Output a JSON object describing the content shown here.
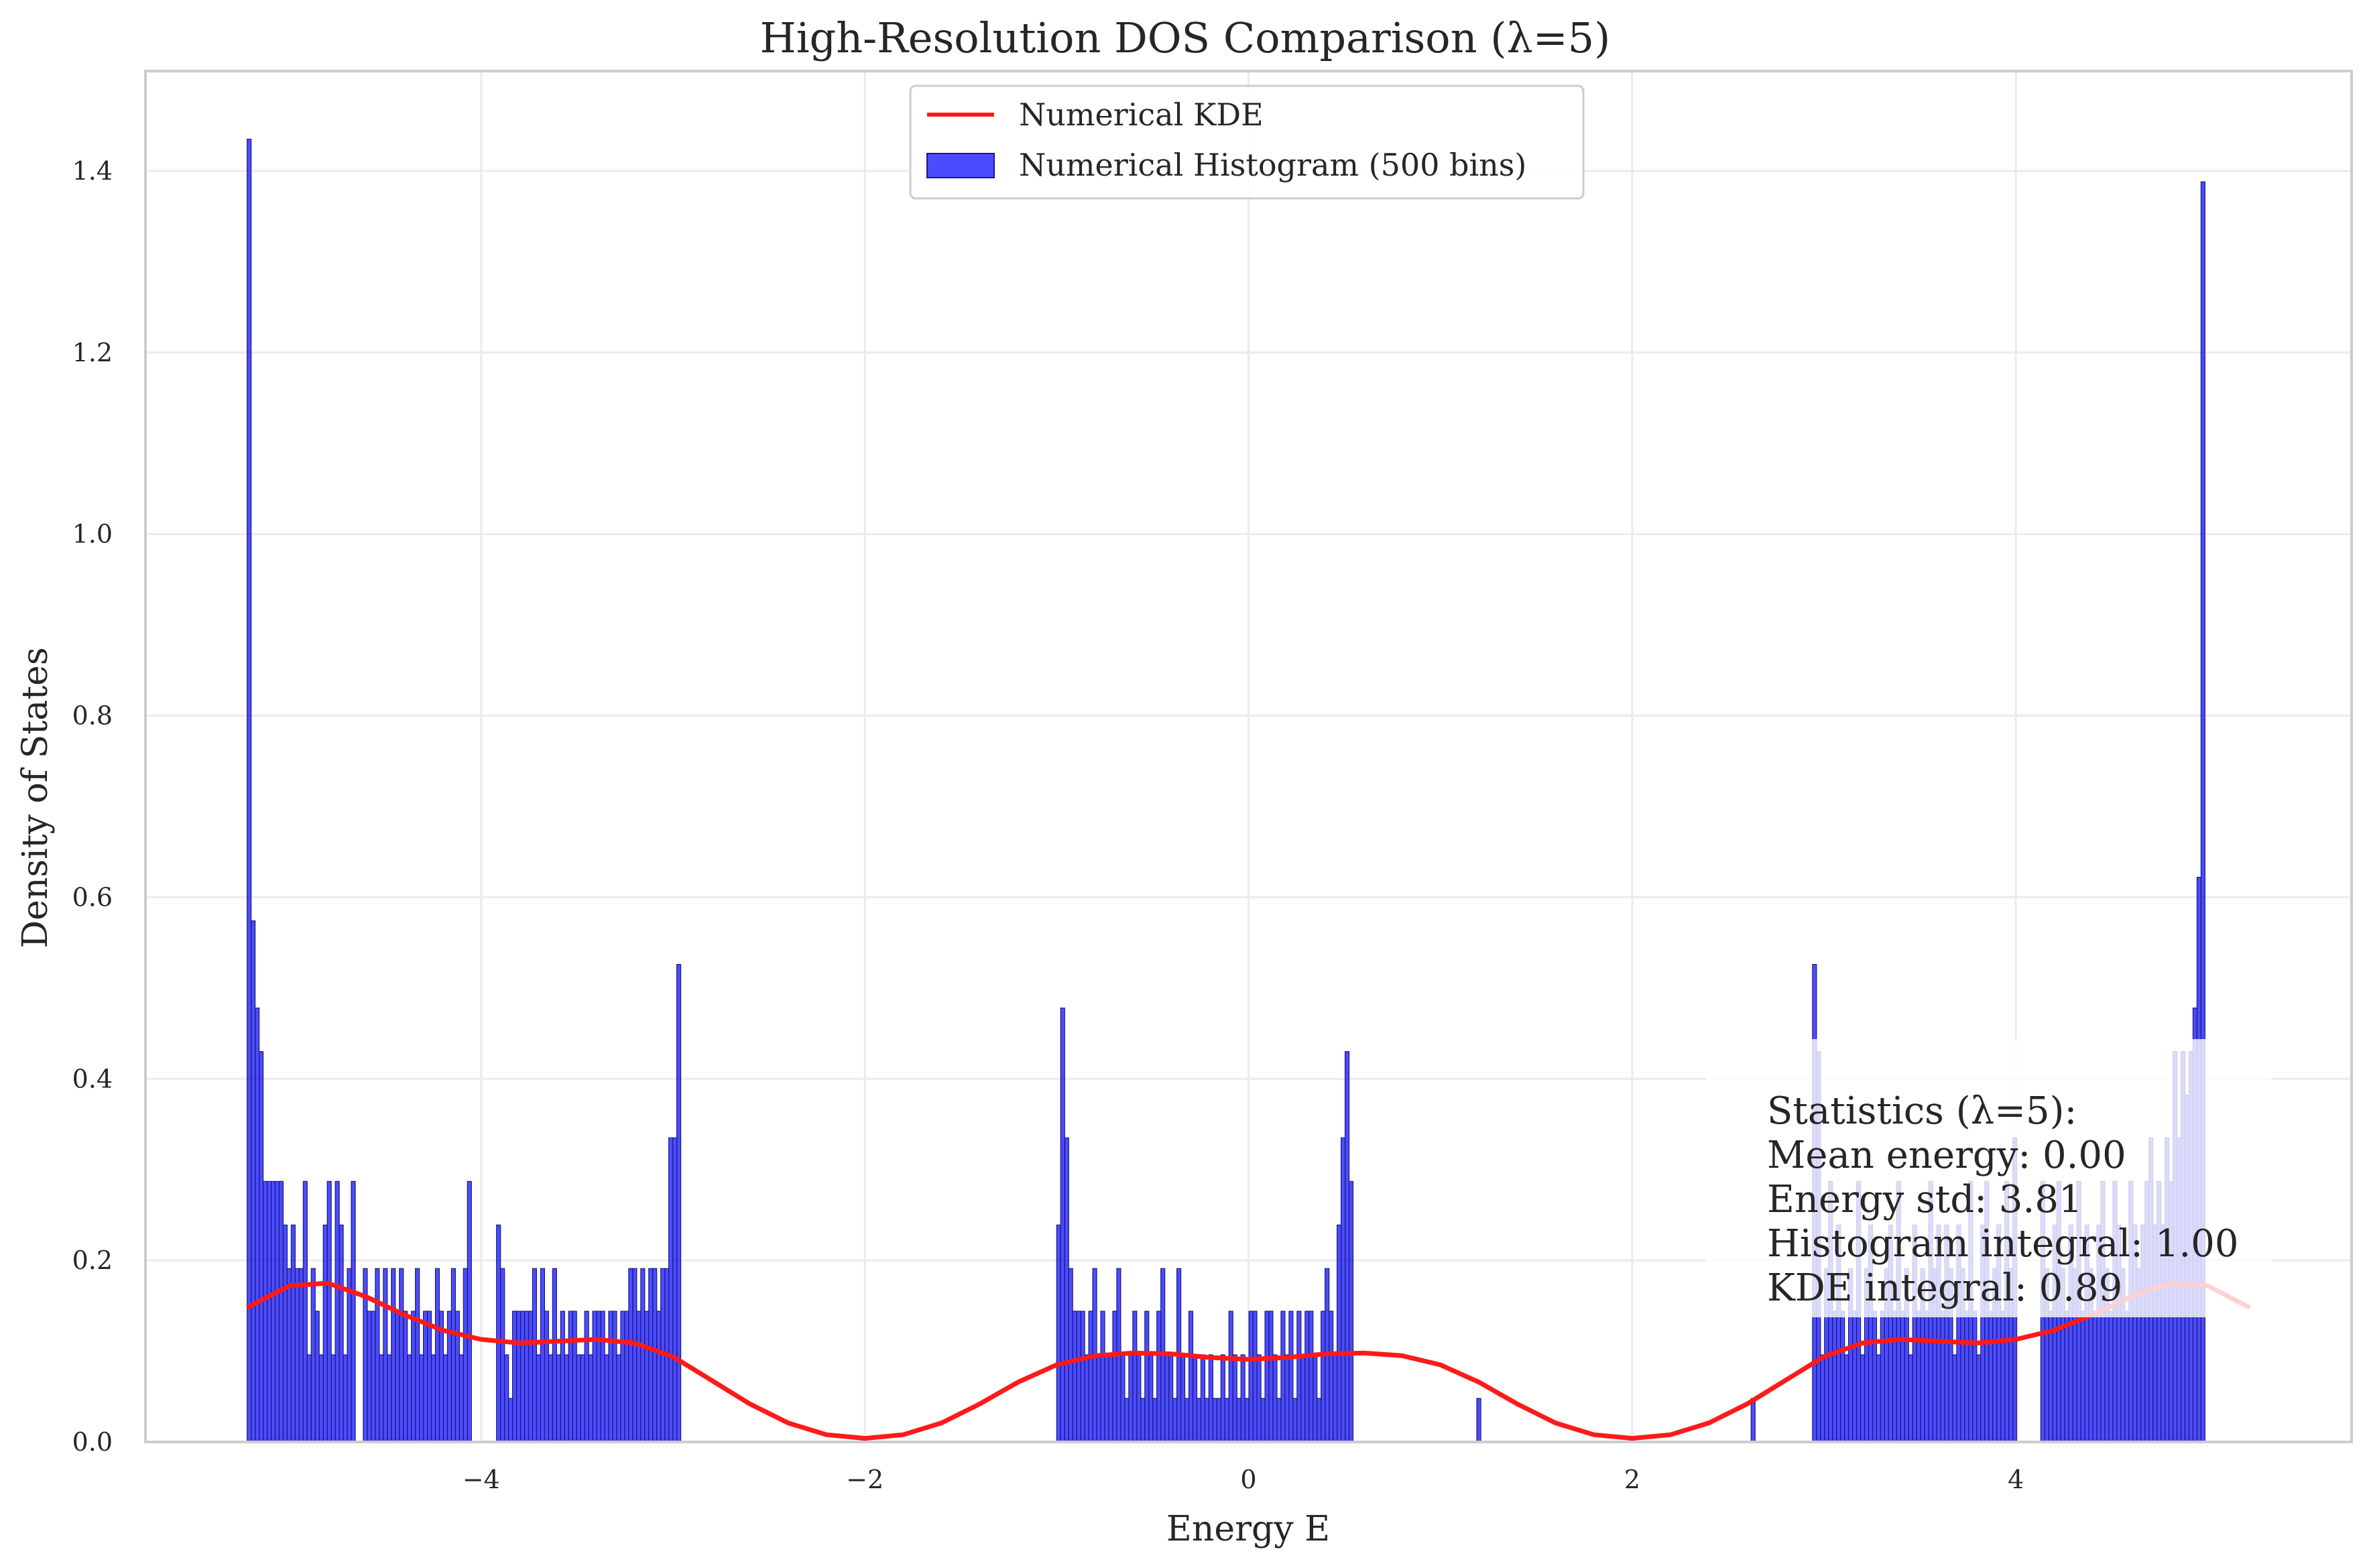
{
  "colors": {
    "hist_fill": "#0000ff",
    "hist_edge": "#1a1a80",
    "kde_line": "#ff1a1a",
    "grid": "#ebebeb",
    "frame": "#cccccc",
    "stats_bg": "#ffffff"
  },
  "chart_data": {
    "type": "bar",
    "title": "High-Resolution DOS Comparison (λ=5)",
    "xlabel": "Energy E",
    "ylabel": "Density of States",
    "xlim": [
      -5.75,
      5.75
    ],
    "ylim": [
      0,
      1.51
    ],
    "xticks": [
      -4,
      -2,
      0,
      2,
      4
    ],
    "xtick_labels": [
      "−4",
      "−2",
      "0",
      "2",
      "4"
    ],
    "yticks": [
      0,
      0.2,
      0.4,
      0.6,
      0.8,
      1.0,
      1.2,
      1.4
    ],
    "ytick_labels": [
      "0.0",
      "0.2",
      "0.4",
      "0.6",
      "0.8",
      "1.0",
      "1.2",
      "1.4"
    ],
    "grid": true,
    "legend_position": "top-center",
    "legend": [
      {
        "label": "Numerical KDE",
        "kind": "line"
      },
      {
        "label": "Numerical Histogram (500 bins)",
        "kind": "patch"
      }
    ],
    "series": [
      {
        "name": "Numerical Histogram (500 bins)",
        "kind": "histogram",
        "bin_range": [
          -5.22,
          5.22
        ],
        "bins": 500,
        "segments": [
          {
            "start": -5.22,
            "values": [
              1.435,
              0.574,
              0.478,
              0.43,
              0.287,
              0.287,
              0.287,
              0.287,
              0.287,
              0.239,
              0.191,
              0.239,
              0.191,
              0.191,
              0.287,
              0.096,
              0.191,
              0.144,
              0.096,
              0.239,
              0.287,
              0.096,
              0.287,
              0.239,
              0.096,
              0.191,
              0.287,
              0.0,
              0.0,
              0.191,
              0.144,
              0.144,
              0.191,
              0.096,
              0.191,
              0.096,
              0.191,
              0.144,
              0.191,
              0.144,
              0.096,
              0.144,
              0.191,
              0.096,
              0.144,
              0.144,
              0.096,
              0.191,
              0.144,
              0.096,
              0.144,
              0.191,
              0.144,
              0.096,
              0.191,
              0.287
            ]
          },
          {
            "start": -3.92,
            "values": [
              0.239,
              0.191,
              0.096,
              0.048,
              0.144,
              0.144,
              0.144,
              0.144,
              0.144,
              0.191,
              0.096,
              0.191,
              0.144,
              0.096,
              0.191,
              0.096,
              0.144,
              0.096,
              0.144,
              0.144,
              0.096,
              0.096,
              0.144,
              0.096,
              0.144,
              0.144,
              0.144,
              0.096,
              0.144,
              0.144,
              0.096,
              0.144,
              0.144,
              0.191,
              0.191,
              0.144,
              0.191,
              0.144,
              0.191,
              0.191,
              0.144,
              0.191,
              0.191,
              0.335,
              0.335,
              0.526
            ]
          },
          {
            "start": -1.0,
            "values": [
              0.239,
              0.478,
              0.335,
              0.191,
              0.144,
              0.144,
              0.144,
              0.096,
              0.144,
              0.191,
              0.096,
              0.144,
              0.096,
              0.096,
              0.144,
              0.191,
              0.096,
              0.048,
              0.096,
              0.144,
              0.096,
              0.048,
              0.144,
              0.096,
              0.048,
              0.144,
              0.191,
              0.096,
              0.096,
              0.048,
              0.191,
              0.096,
              0.048,
              0.144,
              0.096,
              0.048,
              0.096,
              0.048,
              0.096,
              0.048,
              0.048,
              0.096,
              0.048,
              0.144,
              0.096,
              0.048,
              0.096,
              0.048,
              0.144,
              0.144,
              0.096,
              0.048,
              0.144,
              0.144,
              0.096,
              0.048,
              0.144,
              0.096,
              0.144,
              0.048,
              0.144,
              0.096,
              0.144,
              0.144,
              0.096,
              0.048,
              0.144,
              0.191,
              0.144,
              0.096,
              0.239,
              0.335,
              0.43,
              0.287
            ]
          },
          {
            "start": 1.19,
            "values": [
              0.048
            ]
          },
          {
            "start": 2.62,
            "values": [
              0.048
            ]
          },
          {
            "start": 2.94,
            "values": [
              0.526,
              0.43,
              0.096,
              0.191,
              0.287,
              0.144,
              0.239,
              0.144,
              0.096,
              0.191,
              0.144,
              0.287,
              0.096,
              0.191,
              0.239,
              0.144,
              0.096,
              0.144,
              0.191,
              0.239,
              0.144,
              0.287,
              0.144,
              0.191,
              0.096,
              0.239,
              0.144,
              0.191,
              0.144,
              0.287,
              0.191,
              0.239,
              0.144,
              0.239,
              0.191,
              0.096,
              0.239,
              0.191,
              0.144,
              0.287,
              0.144,
              0.096,
              0.239,
              0.287,
              0.144,
              0.191,
              0.239,
              0.144,
              0.287,
              0.191,
              0.335
            ]
          },
          {
            "start": 4.13,
            "values": [
              0.287,
              0.191,
              0.144,
              0.239,
              0.287,
              0.191,
              0.144,
              0.239,
              0.191,
              0.287,
              0.144,
              0.239,
              0.191,
              0.144,
              0.239,
              0.287,
              0.191,
              0.144,
              0.287,
              0.239,
              0.191,
              0.144,
              0.287,
              0.239,
              0.191,
              0.239,
              0.287,
              0.335,
              0.239,
              0.287,
              0.239,
              0.335,
              0.287,
              0.43,
              0.335,
              0.43,
              0.382,
              0.43,
              0.478,
              0.622,
              1.388
            ]
          }
        ]
      },
      {
        "name": "Numerical KDE",
        "kind": "line",
        "x": [
          -5.22,
          -5.0,
          -4.8,
          -4.6,
          -4.4,
          -4.2,
          -4.0,
          -3.8,
          -3.6,
          -3.4,
          -3.2,
          -3.0,
          -2.8,
          -2.6,
          -2.4,
          -2.2,
          -2.0,
          -1.8,
          -1.6,
          -1.4,
          -1.2,
          -1.0,
          -0.8,
          -0.6,
          -0.4,
          -0.2,
          0.0,
          0.2,
          0.4,
          0.6,
          0.8,
          1.0,
          1.2,
          1.4,
          1.6,
          1.8,
          2.0,
          2.2,
          2.4,
          2.6,
          2.8,
          3.0,
          3.2,
          3.4,
          3.6,
          3.8,
          4.0,
          4.2,
          4.4,
          4.6,
          4.8,
          5.0,
          5.22
        ],
        "y": [
          0.148,
          0.172,
          0.175,
          0.16,
          0.14,
          0.123,
          0.113,
          0.109,
          0.111,
          0.113,
          0.109,
          0.094,
          0.068,
          0.042,
          0.021,
          0.008,
          0.004,
          0.008,
          0.021,
          0.042,
          0.066,
          0.085,
          0.095,
          0.098,
          0.097,
          0.093,
          0.091,
          0.093,
          0.097,
          0.098,
          0.095,
          0.085,
          0.066,
          0.042,
          0.021,
          0.008,
          0.004,
          0.008,
          0.021,
          0.042,
          0.068,
          0.094,
          0.109,
          0.113,
          0.111,
          0.109,
          0.113,
          0.123,
          0.14,
          0.16,
          0.175,
          0.172,
          0.148
        ]
      }
    ],
    "stats_box": {
      "lines": [
        "Statistics (λ=5):",
        "Mean energy: 0.00",
        "Energy std: 3.81",
        "Histogram integral: 1.00",
        "KDE integral: 0.89"
      ]
    }
  }
}
